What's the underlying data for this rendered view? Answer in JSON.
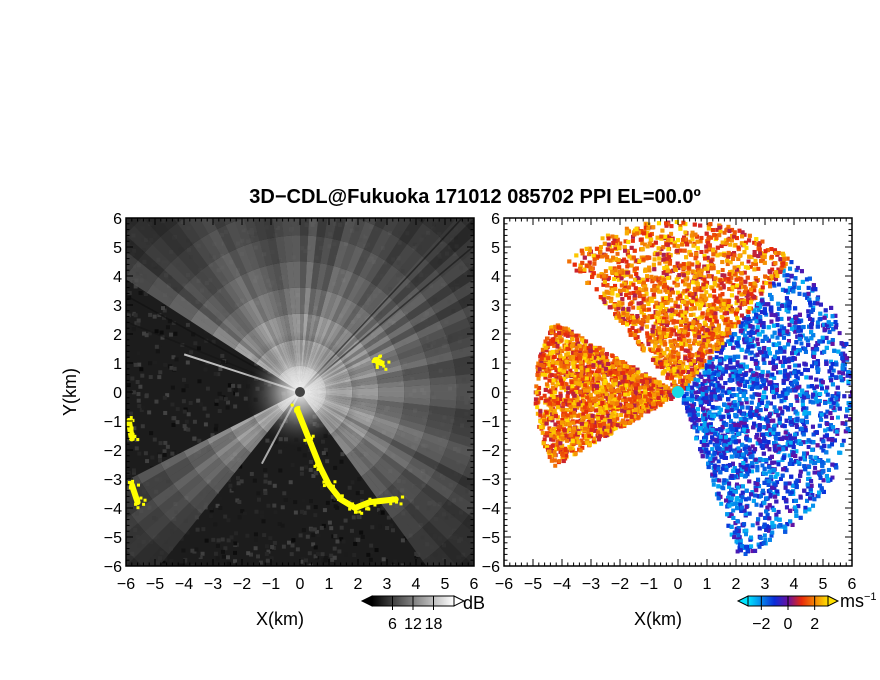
{
  "title": "3D−CDL@Fukuoka 171012 085702 PPI EL=00.0º",
  "chart_data": [
    {
      "type": "heatmap",
      "name": "reflectivity-ppi",
      "xlabel": "X(km)",
      "ylabel": "Y(km)",
      "xlim": [
        -6,
        6
      ],
      "ylim": [
        -6,
        6
      ],
      "xticks": [
        "−6",
        "−5",
        "−4",
        "−3",
        "−2",
        "−1",
        "0",
        "1",
        "2",
        "3",
        "4",
        "5",
        "6"
      ],
      "yticks": [
        "6",
        "5",
        "4",
        "3",
        "2",
        "1",
        "0",
        "−1",
        "−2",
        "−3",
        "−4",
        "−5",
        "−6"
      ],
      "colorbar": {
        "unit": "dB",
        "ticks": [
          "6",
          "12",
          "18"
        ],
        "range": [
          0,
          24
        ],
        "colors": [
          "#000000",
          "#ffffff"
        ]
      },
      "clutter_color": "#ffff00",
      "blocked_sectors_deg": [
        [
          148,
          208
        ],
        [
          232,
          305
        ]
      ],
      "clutter_segments_km": [
        [
          [
            -0.1,
            -0.6
          ],
          [
            0.3,
            -1.6
          ],
          [
            0.7,
            -2.6
          ],
          [
            1.0,
            -3.2
          ],
          [
            1.4,
            -3.7
          ],
          [
            1.9,
            -4.0
          ],
          [
            2.4,
            -3.8
          ],
          [
            3.3,
            -3.7
          ]
        ],
        [
          [
            -5.9,
            -1.0
          ],
          [
            -5.8,
            -1.6
          ]
        ],
        [
          [
            -5.8,
            -3.2
          ],
          [
            -5.6,
            -3.8
          ]
        ],
        [
          [
            2.6,
            1.1
          ],
          [
            2.8,
            1.0
          ]
        ]
      ]
    },
    {
      "type": "heatmap",
      "name": "doppler-velocity-ppi",
      "xlabel": "X(km)",
      "xlim": [
        -6,
        6
      ],
      "ylim": [
        -6,
        6
      ],
      "xticks": [
        "−6",
        "−5",
        "−4",
        "−3",
        "−2",
        "−1",
        "0",
        "1",
        "2",
        "3",
        "4",
        "5",
        "6"
      ],
      "yticks": [
        "6",
        "5",
        "4",
        "3",
        "2",
        "1",
        "0",
        "−1",
        "−2",
        "−3",
        "−4",
        "−5",
        "−6"
      ],
      "colorbar": {
        "unit": "ms−1",
        "ticks": [
          "−2",
          "0",
          "2"
        ],
        "range": [
          -3,
          3
        ],
        "colors": [
          "#00e5ff",
          "#0a2cd8",
          "#e82a0a",
          "#ffe000"
        ]
      },
      "velocity_regions": [
        {
          "description_deg": [
            -70,
            50
          ],
          "range_km": [
            0,
            6
          ],
          "velocity_ms": [
            -2.5,
            0
          ]
        },
        {
          "description_deg": [
            50,
            130
          ],
          "range_km": [
            0,
            6
          ],
          "velocity_ms": [
            0.5,
            3
          ]
        },
        {
          "description_deg": [
            150,
            210
          ],
          "range_km": [
            0,
            5
          ],
          "velocity_ms": [
            0.5,
            3
          ]
        }
      ]
    }
  ]
}
